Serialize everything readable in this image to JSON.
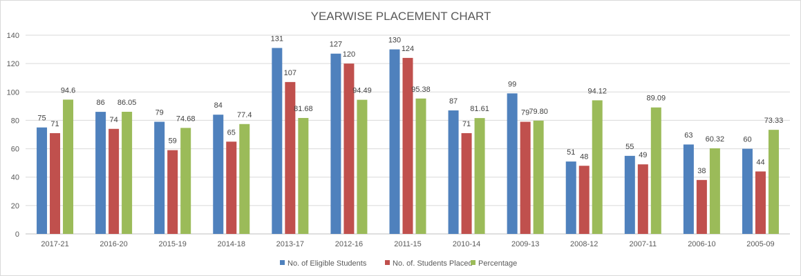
{
  "chart_data": {
    "type": "bar",
    "title": "YEARWISE PLACEMENT CHART",
    "xlabel": "",
    "ylabel": "",
    "categories": [
      "2017-21",
      "2016-20",
      "2015-19",
      "2014-18",
      "2013-17",
      "2012-16",
      "2011-15",
      "2010-14",
      "2009-13",
      "2008-12",
      "2007-11",
      "2006-10",
      "2005-09"
    ],
    "series": [
      {
        "name": "No. of Eligible Students",
        "color": "#4f81bd",
        "values": [
          75,
          86,
          79,
          84,
          131,
          127,
          130,
          87,
          99,
          51,
          55,
          63,
          60
        ],
        "labels": [
          "75",
          "86",
          "79",
          "84",
          "131",
          "127",
          "130",
          "87",
          "99",
          "51",
          "55",
          "63",
          "60"
        ]
      },
      {
        "name": "No. of. Students Placed",
        "color": "#c0504d",
        "values": [
          71,
          74,
          59,
          65,
          107,
          120,
          124,
          71,
          79,
          48,
          49,
          38,
          44
        ],
        "labels": [
          "71",
          "74",
          "59",
          "65",
          "107",
          "120",
          "124",
          "71",
          "79",
          "48",
          "49",
          "38",
          "44"
        ]
      },
      {
        "name": "Percentage",
        "color": "#9bbb59",
        "values": [
          94.6,
          86.05,
          74.68,
          77.4,
          81.68,
          94.49,
          95.38,
          81.61,
          79.8,
          94.12,
          89.09,
          60.32,
          73.33
        ],
        "labels": [
          "94.6",
          "86.05",
          "74.68",
          "77.4",
          "81.68",
          "94.49",
          "95.38",
          "81.61",
          "79.80",
          "94.12",
          "89.09",
          "60.32",
          "73.33"
        ]
      }
    ],
    "ylim": [
      0,
      140
    ],
    "yticks": [
      "0",
      "20",
      "40",
      "60",
      "80",
      "100",
      "120",
      "140"
    ],
    "grid": true,
    "legend_position": "bottom"
  }
}
